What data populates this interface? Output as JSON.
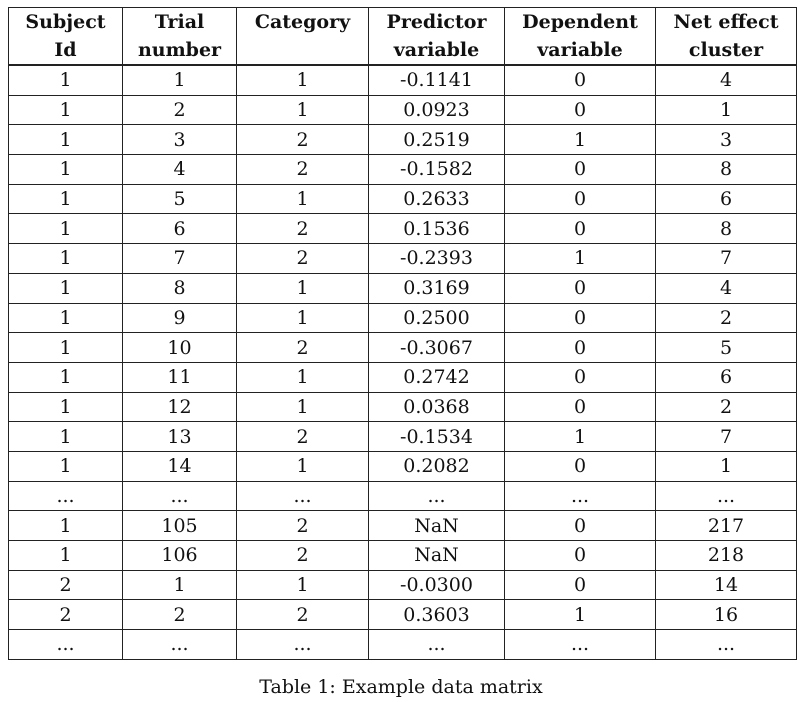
{
  "table": {
    "headers": [
      [
        "Subject",
        "Id"
      ],
      [
        "Trial",
        "number"
      ],
      [
        "Category",
        ""
      ],
      [
        "Predictor",
        "variable"
      ],
      [
        "Dependent",
        "variable"
      ],
      [
        "Net effect",
        "cluster"
      ]
    ],
    "rows": [
      [
        "1",
        "1",
        "1",
        "-0.1141",
        "0",
        "4"
      ],
      [
        "1",
        "2",
        "1",
        "0.0923",
        "0",
        "1"
      ],
      [
        "1",
        "3",
        "2",
        "0.2519",
        "1",
        "3"
      ],
      [
        "1",
        "4",
        "2",
        "-0.1582",
        "0",
        "8"
      ],
      [
        "1",
        "5",
        "1",
        "0.2633",
        "0",
        "6"
      ],
      [
        "1",
        "6",
        "2",
        "0.1536",
        "0",
        "8"
      ],
      [
        "1",
        "7",
        "2",
        "-0.2393",
        "1",
        "7"
      ],
      [
        "1",
        "8",
        "1",
        "0.3169",
        "0",
        "4"
      ],
      [
        "1",
        "9",
        "1",
        "0.2500",
        "0",
        "2"
      ],
      [
        "1",
        "10",
        "2",
        "-0.3067",
        "0",
        "5"
      ],
      [
        "1",
        "11",
        "1",
        "0.2742",
        "0",
        "6"
      ],
      [
        "1",
        "12",
        "1",
        "0.0368",
        "0",
        "2"
      ],
      [
        "1",
        "13",
        "2",
        "-0.1534",
        "1",
        "7"
      ],
      [
        "1",
        "14",
        "1",
        "0.2082",
        "0",
        "1"
      ],
      [
        "...",
        "...",
        "...",
        "...",
        "...",
        "..."
      ],
      [
        "1",
        "105",
        "2",
        "NaN",
        "0",
        "217"
      ],
      [
        "1",
        "106",
        "2",
        "NaN",
        "0",
        "218"
      ],
      [
        "2",
        "1",
        "1",
        "-0.0300",
        "0",
        "14"
      ],
      [
        "2",
        "2",
        "2",
        "0.3603",
        "1",
        "16"
      ],
      [
        "...",
        "...",
        "...",
        "...",
        "...",
        "..."
      ]
    ]
  },
  "caption": "Table 1: Example data matrix"
}
